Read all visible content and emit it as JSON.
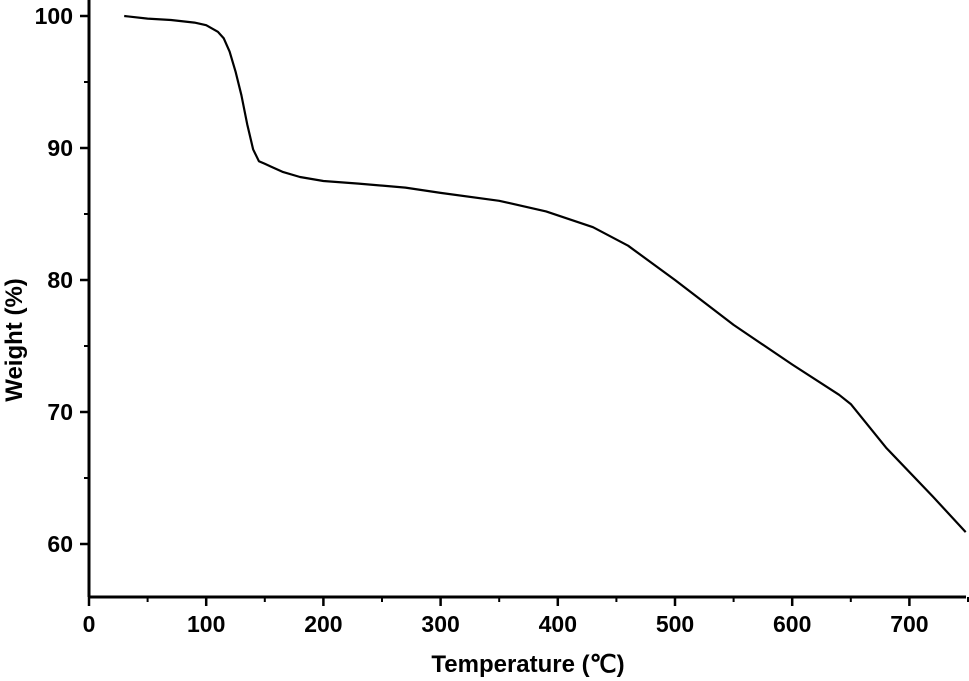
{
  "chart_data": {
    "type": "line",
    "title": "",
    "xlabel": "Temperature (℃)",
    "ylabel": "Weight (%)",
    "xlim": [
      0,
      750
    ],
    "ylim": [
      56,
      101
    ],
    "x_ticks": [
      0,
      100,
      200,
      300,
      400,
      500,
      600,
      700
    ],
    "y_ticks": [
      60,
      70,
      80,
      90,
      100
    ],
    "grid": false,
    "legend": "none",
    "line_color": "#000000",
    "series": [
      {
        "x": [
          30,
          50,
          70,
          90,
          100,
          110,
          115,
          120,
          125,
          130,
          135,
          140,
          145,
          150,
          155,
          165,
          180,
          200,
          230,
          270,
          300,
          350,
          390,
          430,
          460,
          500,
          550,
          600,
          640,
          650,
          680,
          720,
          748
        ],
        "y": [
          100.0,
          99.8,
          99.7,
          99.5,
          99.3,
          98.8,
          98.3,
          97.3,
          95.8,
          94.0,
          91.8,
          89.9,
          89.0,
          88.8,
          88.6,
          88.2,
          87.8,
          87.5,
          87.3,
          87.0,
          86.6,
          86.0,
          85.2,
          84.0,
          82.6,
          80.0,
          76.6,
          73.6,
          71.3,
          70.6,
          67.3,
          63.6,
          60.9
        ]
      }
    ]
  }
}
